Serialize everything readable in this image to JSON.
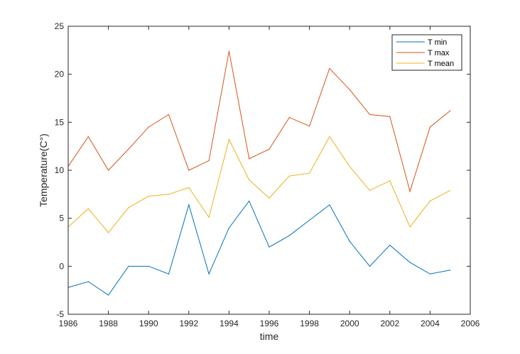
{
  "chart_data": {
    "type": "line",
    "title": "",
    "xlabel": "time",
    "ylabel": "Temperature(C°)",
    "xlim": [
      1986,
      2006
    ],
    "ylim": [
      -5,
      25
    ],
    "xticks": [
      1986,
      1988,
      1990,
      1992,
      1994,
      1996,
      1998,
      2000,
      2002,
      2004,
      2006
    ],
    "yticks": [
      -5,
      0,
      5,
      10,
      15,
      20,
      25
    ],
    "grid": false,
    "legend_position": "top-right",
    "x": [
      1986,
      1987,
      1988,
      1989,
      1990,
      1991,
      1992,
      1993,
      1994,
      1995,
      1996,
      1997,
      1998,
      1999,
      2000,
      2001,
      2002,
      2003,
      2004,
      2005
    ],
    "series": [
      {
        "name": "T min",
        "color": "#0072bd",
        "values": [
          -2.2,
          -1.6,
          -3.0,
          0.0,
          0.0,
          -0.8,
          6.4,
          -0.8,
          4.0,
          6.8,
          2.0,
          3.2,
          4.8,
          6.4,
          2.6,
          0.0,
          2.2,
          0.4,
          -0.8,
          -0.4
        ]
      },
      {
        "name": "T max",
        "color": "#d95319",
        "values": [
          10.4,
          13.5,
          10.0,
          12.2,
          14.5,
          15.8,
          10.0,
          11.0,
          22.4,
          11.2,
          12.2,
          15.5,
          14.6,
          20.6,
          18.4,
          15.8,
          15.6,
          7.8,
          14.5,
          16.2
        ]
      },
      {
        "name": "T mean",
        "color": "#edb120",
        "values": [
          4.1,
          6.0,
          3.5,
          6.1,
          7.3,
          7.5,
          8.2,
          5.1,
          13.2,
          9.0,
          7.1,
          9.4,
          9.7,
          13.5,
          10.4,
          7.9,
          8.9,
          4.1,
          6.8,
          7.9
        ]
      }
    ]
  }
}
